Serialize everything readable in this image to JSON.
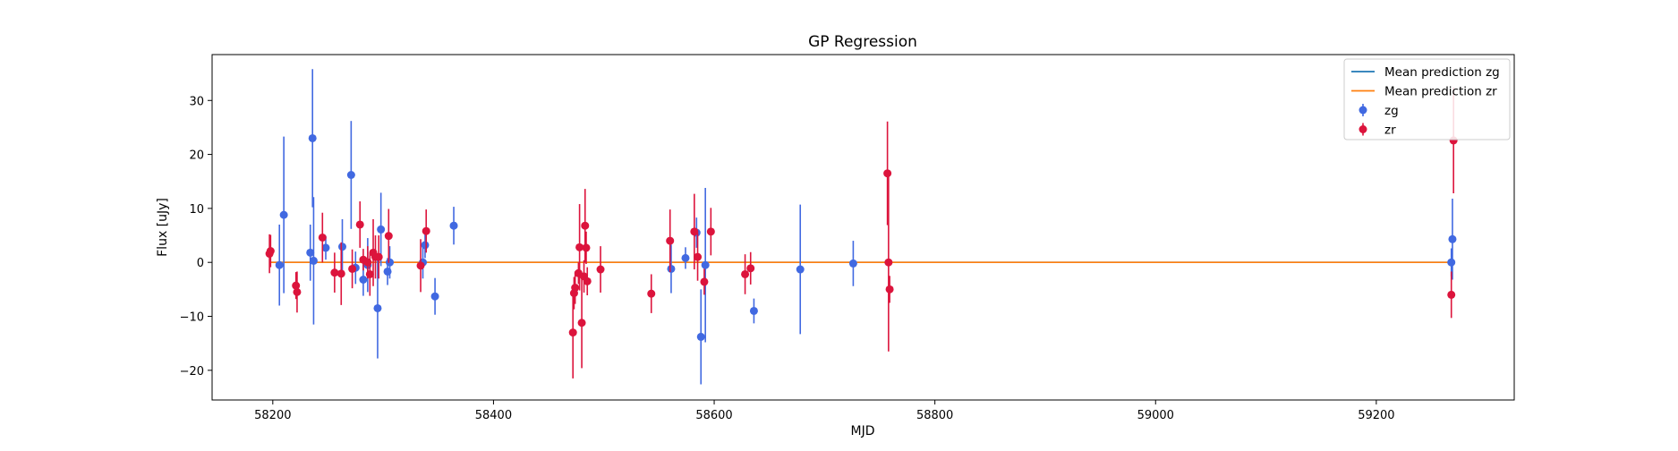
{
  "chart_data": {
    "type": "scatter",
    "title": "GP Regression",
    "xlabel": "MJD",
    "ylabel": "Flux [uJy]",
    "xlim": [
      58145,
      59325
    ],
    "ylim": [
      -25.5,
      38.5
    ],
    "x_ticks": [
      58200,
      58400,
      58600,
      58800,
      59000,
      59200
    ],
    "y_ticks": [
      -20,
      -10,
      0,
      10,
      20,
      30
    ],
    "legend_position": "top-right",
    "grid": false,
    "lines": [
      {
        "name": "Mean prediction zg",
        "color": "#1f77b4",
        "x": [
          58197,
          59268
        ],
        "y": [
          0,
          0
        ]
      },
      {
        "name": "Mean prediction zr",
        "color": "#ff7f0e",
        "x": [
          58197,
          59268
        ],
        "y": [
          0,
          0
        ]
      }
    ],
    "series": [
      {
        "name": "zg",
        "color": "#4169e1",
        "points": [
          {
            "x": 58206,
            "y": -0.5,
            "err": 7.5
          },
          {
            "x": 58210,
            "y": 8.8,
            "err": 14.5
          },
          {
            "x": 58234,
            "y": 1.8,
            "err": 5.2
          },
          {
            "x": 58236,
            "y": 23.0,
            "err": 12.8
          },
          {
            "x": 58237,
            "y": 0.3,
            "err": 11.8
          },
          {
            "x": 58248,
            "y": 2.7,
            "err": 2.2
          },
          {
            "x": 58263,
            "y": 2.9,
            "err": 5.1
          },
          {
            "x": 58271,
            "y": 16.2,
            "err": 10.0
          },
          {
            "x": 58275,
            "y": -1.0,
            "err": 3.0
          },
          {
            "x": 58282,
            "y": -3.2,
            "err": 3.0
          },
          {
            "x": 58286,
            "y": -0.5,
            "err": 5.0
          },
          {
            "x": 58295,
            "y": -8.5,
            "err": 9.3
          },
          {
            "x": 58298,
            "y": 6.1,
            "err": 6.8
          },
          {
            "x": 58304,
            "y": -1.7,
            "err": 2.5
          },
          {
            "x": 58306,
            "y": 0.0,
            "err": 3.0
          },
          {
            "x": 58336,
            "y": 0.0,
            "err": 3.0
          },
          {
            "x": 58338,
            "y": 3.2,
            "err": 2.4
          },
          {
            "x": 58347,
            "y": -6.3,
            "err": 3.4
          },
          {
            "x": 58364,
            "y": 6.8,
            "err": 3.5
          },
          {
            "x": 58561,
            "y": -1.2,
            "err": 4.5
          },
          {
            "x": 58574,
            "y": 0.8,
            "err": 2.0
          },
          {
            "x": 58584,
            "y": 5.5,
            "err": 2.8
          },
          {
            "x": 58588,
            "y": -13.8,
            "err": 8.8
          },
          {
            "x": 58592,
            "y": -0.5,
            "err": 14.3
          },
          {
            "x": 58636,
            "y": -9.0,
            "err": 2.3
          },
          {
            "x": 58678,
            "y": -1.3,
            "err": 12.0
          },
          {
            "x": 58726,
            "y": -0.2,
            "err": 4.2
          },
          {
            "x": 59268,
            "y": 0.0,
            "err": 2.6
          },
          {
            "x": 59269,
            "y": 4.3,
            "err": 7.5
          }
        ]
      },
      {
        "name": "zr",
        "color": "#dc143c",
        "points": [
          {
            "x": 58197,
            "y": 1.6,
            "err": 3.6
          },
          {
            "x": 58198,
            "y": 2.1,
            "err": 3.0
          },
          {
            "x": 58221,
            "y": -4.3,
            "err": 2.5
          },
          {
            "x": 58222,
            "y": -5.5,
            "err": 3.8
          },
          {
            "x": 58245,
            "y": 4.6,
            "err": 4.6
          },
          {
            "x": 58256,
            "y": -1.9,
            "err": 3.7
          },
          {
            "x": 58262,
            "y": -2.1,
            "err": 5.8
          },
          {
            "x": 58272,
            "y": -1.2,
            "err": 3.6
          },
          {
            "x": 58279,
            "y": 7.0,
            "err": 4.3
          },
          {
            "x": 58282,
            "y": 0.5,
            "err": 2.0
          },
          {
            "x": 58286,
            "y": 0.0,
            "err": 3.0
          },
          {
            "x": 58288,
            "y": -2.2,
            "err": 4.0
          },
          {
            "x": 58291,
            "y": 1.8,
            "err": 6.2
          },
          {
            "x": 58293,
            "y": 1.0,
            "err": 4.0
          },
          {
            "x": 58296,
            "y": 1.0,
            "err": 4.0
          },
          {
            "x": 58305,
            "y": 4.9,
            "err": 5.0
          },
          {
            "x": 58334,
            "y": -0.6,
            "err": 4.9
          },
          {
            "x": 58339,
            "y": 5.8,
            "err": 4.0
          },
          {
            "x": 58472,
            "y": -13.0,
            "err": 8.5
          },
          {
            "x": 58473,
            "y": -5.7,
            "err": 3.0
          },
          {
            "x": 58474,
            "y": -4.7,
            "err": 3.0
          },
          {
            "x": 58477,
            "y": -2.0,
            "err": 2.0
          },
          {
            "x": 58478,
            "y": 2.8,
            "err": 8.0
          },
          {
            "x": 58480,
            "y": -11.2,
            "err": 8.4
          },
          {
            "x": 58482,
            "y": -2.6,
            "err": 3.0
          },
          {
            "x": 58483,
            "y": 6.8,
            "err": 6.8
          },
          {
            "x": 58484,
            "y": 2.7,
            "err": 3.0
          },
          {
            "x": 58485,
            "y": -3.5,
            "err": 2.6
          },
          {
            "x": 58497,
            "y": -1.3,
            "err": 4.3
          },
          {
            "x": 58543,
            "y": -5.8,
            "err": 3.6
          },
          {
            "x": 58560,
            "y": 4.0,
            "err": 5.8
          },
          {
            "x": 58582,
            "y": 5.7,
            "err": 7.0
          },
          {
            "x": 58585,
            "y": 1.0,
            "err": 4.4
          },
          {
            "x": 58591,
            "y": -3.6,
            "err": 2.4
          },
          {
            "x": 58597,
            "y": 5.7,
            "err": 4.4
          },
          {
            "x": 58628,
            "y": -2.2,
            "err": 3.7
          },
          {
            "x": 58633,
            "y": -1.1,
            "err": 3.0
          },
          {
            "x": 58757,
            "y": 16.5,
            "err": 9.6
          },
          {
            "x": 58758,
            "y": 0.0,
            "err": 16.5
          },
          {
            "x": 58759,
            "y": -5.0,
            "err": 2.5
          },
          {
            "x": 59268,
            "y": -6.0,
            "err": 4.3
          },
          {
            "x": 59270,
            "y": 22.6,
            "err": 9.8
          }
        ]
      }
    ]
  }
}
